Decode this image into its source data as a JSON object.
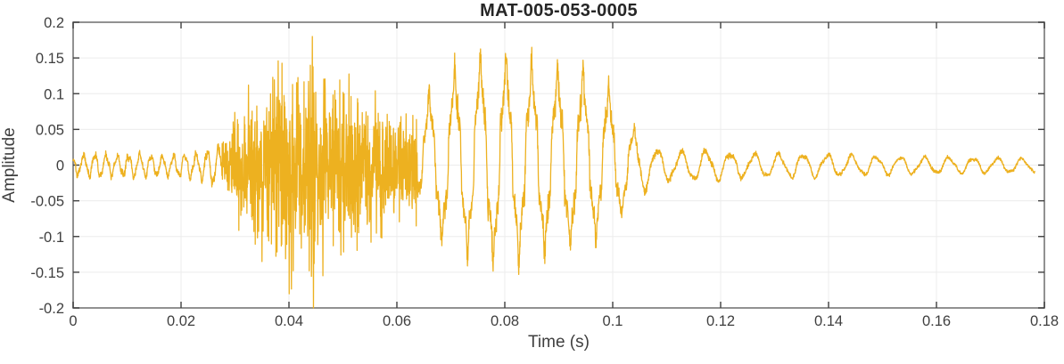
{
  "page": {
    "background": "#ffffff"
  },
  "chart_data": {
    "type": "line",
    "title": "MAT-005-053-0005",
    "xlabel": "Time (s)",
    "ylabel": "Amplitude",
    "xlim": [
      0,
      0.18
    ],
    "ylim": [
      -0.2,
      0.2
    ],
    "xticks": [
      0,
      0.02,
      0.04,
      0.06,
      0.08,
      0.1,
      0.12,
      0.14,
      0.16,
      0.18
    ],
    "xtick_labels": [
      "0",
      "0.02",
      "0.04",
      "0.06",
      "0.08",
      "0.1",
      "0.12",
      "0.14",
      "0.16",
      "0.18"
    ],
    "yticks": [
      -0.2,
      -0.15,
      -0.1,
      -0.05,
      0,
      0.05,
      0.1,
      0.15,
      0.2
    ],
    "ytick_labels": [
      "-0.2",
      "-0.15",
      "-0.1",
      "-0.05",
      "0",
      "0.05",
      "0.1",
      "0.15",
      "0.2"
    ],
    "grid": true,
    "legend": "none",
    "colors": {
      "line": "#EDB120",
      "grid": "#ECECEC",
      "box": "#858585",
      "tick": "#3F3F3F",
      "tick_text": "#3F3F3F",
      "label_text": "#3F3F3F",
      "title_text": "#262626"
    },
    "signal": {
      "description": "acoustic-emission style waveform: quiet lead-in ripple, broadband noise burst 0.028-0.064 s peaking +0.18/-0.20 near 0.0445 s, ringing tonal burst ~210 Hz 0.064-0.104 s peaking +0.147, slowly decaying ripple tail to 0.178 s",
      "sample_rate": 24000,
      "t_end": 0.1782,
      "segments": [
        {
          "name": "lead-in-ripple",
          "type": "tone",
          "t0": 0,
          "t1": 0.0275,
          "freq": 480,
          "phase": 2.0,
          "neg_scale": 1.15,
          "noise": 0.35,
          "harmonics": [
            {
              "mult": 1,
              "amp": 1
            },
            {
              "mult": 2.6,
              "amp": 0.22
            }
          ],
          "envelope": [
            [
              0,
              0.011
            ],
            [
              0.004,
              0.015
            ],
            [
              0.008,
              0.012
            ],
            [
              0.012,
              0.014
            ],
            [
              0.016,
              0.012
            ],
            [
              0.02,
              0.013
            ],
            [
              0.024,
              0.017
            ],
            [
              0.0275,
              0.024
            ]
          ]
        },
        {
          "name": "noise-burst",
          "type": "noise",
          "t0": 0.0275,
          "t1": 0.0638,
          "noise_gain": 1.15,
          "envelope": [
            [
              0.0275,
              0.028
            ],
            [
              0.03,
              0.05
            ],
            [
              0.033,
              0.078
            ],
            [
              0.036,
              0.105
            ],
            [
              0.039,
              0.112
            ],
            [
              0.042,
              0.108
            ],
            [
              0.0445,
              0.12
            ],
            [
              0.047,
              0.102
            ],
            [
              0.05,
              0.092
            ],
            [
              0.053,
              0.082
            ],
            [
              0.056,
              0.075
            ],
            [
              0.059,
              0.068
            ],
            [
              0.062,
              0.058
            ],
            [
              0.0638,
              0.052
            ]
          ]
        },
        {
          "name": "tonal-burst",
          "type": "tone",
          "t0": 0.0638,
          "t1": 0.1045,
          "freq": 210,
          "phase": -1.25,
          "neg_scale": 0.84,
          "noise": 0.14,
          "base_gain": 0.92,
          "harmonics": [
            {
              "mult": 1,
              "amp": 1
            },
            {
              "mult": 5,
              "amp": 0.16
            },
            {
              "mult": 9,
              "amp": 0.06
            }
          ],
          "envelope": [
            [
              0.0638,
              0.06
            ],
            [
              0.0661,
              0.1
            ],
            [
              0.0704,
              0.126
            ],
            [
              0.0752,
              0.142
            ],
            [
              0.0799,
              0.147
            ],
            [
              0.0848,
              0.136
            ],
            [
              0.0902,
              0.126
            ],
            [
              0.0959,
              0.118
            ],
            [
              0.0995,
              0.102
            ],
            [
              0.1012,
              0.08
            ],
            [
              0.1045,
              0.042
            ]
          ]
        },
        {
          "name": "decay-tail",
          "type": "tone",
          "t0": 0.1045,
          "t1": 0.1782,
          "freq": 222,
          "phase": 2.6,
          "neg_scale": 1.12,
          "noise": 0.22,
          "harmonics": [
            {
              "mult": 1,
              "amp": 1
            },
            {
              "mult": 2.3,
              "amp": 0.18
            }
          ],
          "envelope": [
            [
              0.1045,
              0.034
            ],
            [
              0.108,
              0.021
            ],
            [
              0.112,
              0.017
            ],
            [
              0.117,
              0.019
            ],
            [
              0.123,
              0.015
            ],
            [
              0.131,
              0.0145
            ],
            [
              0.14,
              0.0135
            ],
            [
              0.15,
              0.011
            ],
            [
              0.162,
              0.01
            ],
            [
              0.1782,
              0.0085
            ]
          ]
        }
      ],
      "spikes": [
        {
          "t": 0.04435,
          "a": 0.18
        },
        {
          "t": 0.04455,
          "a": -0.2
        },
        {
          "t": 0.0463,
          "a": -0.155
        },
        {
          "t": 0.038,
          "a": 0.146
        },
        {
          "t": 0.0408,
          "a": -0.148
        },
        {
          "t": 0.035,
          "a": -0.135
        },
        {
          "t": 0.0325,
          "a": 0.112
        },
        {
          "t": 0.056,
          "a": 0.104
        },
        {
          "t": 0.0572,
          "a": -0.102
        }
      ]
    }
  }
}
